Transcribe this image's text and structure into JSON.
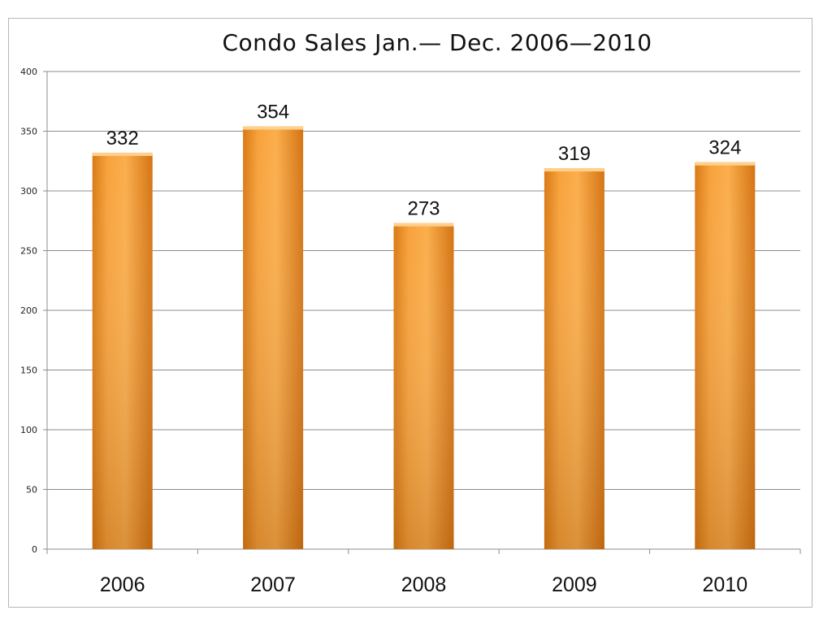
{
  "chart_data": {
    "type": "bar",
    "title": "Condo Sales Jan.— Dec. 2006—2010",
    "xlabel": "",
    "ylabel": "",
    "categories": [
      "2006",
      "2007",
      "2008",
      "2009",
      "2010"
    ],
    "values": [
      332,
      354,
      273,
      319,
      324
    ],
    "data_labels": [
      "332",
      "354",
      "273",
      "319",
      "324"
    ],
    "ylim": [
      0,
      400
    ],
    "yticks": [
      0,
      50,
      100,
      150,
      200,
      250,
      300,
      350,
      400
    ],
    "grid": true,
    "legend": "none",
    "bar_color": "#f59a2e"
  }
}
